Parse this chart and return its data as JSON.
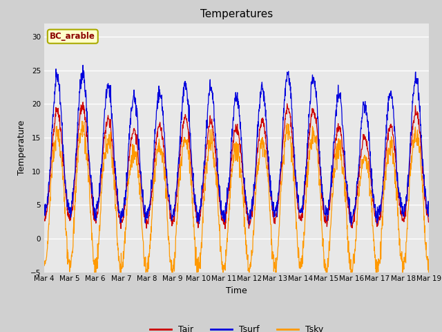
{
  "title": "Temperatures",
  "xlabel": "Time",
  "ylabel": "Temperature",
  "ylim": [
    -5,
    32
  ],
  "yticks": [
    -5,
    0,
    5,
    10,
    15,
    20,
    25,
    30
  ],
  "site_label": "BC_arable",
  "legend_labels": [
    "Tair",
    "Tsurf",
    "Tsky"
  ],
  "tair_color": "#cc0000",
  "tsurf_color": "#0000dd",
  "tsky_color": "#ff9900",
  "fig_bg_color": "#d0d0d0",
  "plot_bg_color": "#e8e8e8",
  "n_days": 15,
  "samples_per_day": 96,
  "start_day": 4,
  "start_month": "Mar",
  "grid_color": "#ffffff",
  "tick_fontsize": 7.5,
  "label_fontsize": 9,
  "title_fontsize": 11
}
